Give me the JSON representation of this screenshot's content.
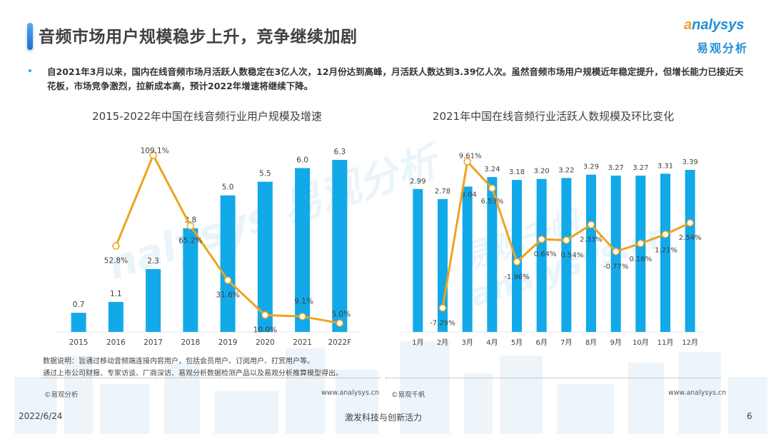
{
  "header": {
    "title": "音频市场用户规模稳步上升，竞争继续加剧",
    "logo_en_first": "a",
    "logo_en_rest": "nalysys",
    "logo_cn": "易观分析"
  },
  "summary": "自2021年3月以来，国内在线音频市场月活跃人数稳定在3亿人次，12月份达到高峰，月活跃人数达到3.39亿人次。虽然音频市场用户规模近年稳定提升，但增长能力已接近天花板，市场竞争激烈，拉新成本高，预计2022年增速将继续下降。",
  "watermarks": {
    "left": "nalysys 易观分析",
    "right": "易观千帆 analysys.cn"
  },
  "chart_data": [
    {
      "type": "bar",
      "title": "2015-2022年中国在线音频行业用户规模及增速",
      "categories": [
        "2015",
        "2016",
        "2017",
        "2018",
        "2019",
        "2020",
        "2021",
        "2022F"
      ],
      "series": [
        {
          "name": "用户规模",
          "kind": "bar",
          "unit": "亿",
          "values": [
            0.7,
            1.1,
            2.3,
            3.8,
            5.0,
            5.5,
            6.0,
            6.3
          ],
          "labels": [
            "0.7",
            "1.1",
            "2.3",
            "3.8",
            "5.0",
            "5.5",
            "6.0",
            "6.3"
          ]
        },
        {
          "name": "增速",
          "kind": "line",
          "unit": "%",
          "values": [
            null,
            52.8,
            109.1,
            65.2,
            31.6,
            10.0,
            9.1,
            5.0
          ],
          "labels": [
            "",
            "52.8%",
            "109.1%",
            "65.2%",
            "31.6%",
            "10.0%",
            "9.1%",
            "5.0%"
          ]
        }
      ],
      "xlabel": "",
      "ylabel": "",
      "ylim_bar": [
        0,
        7
      ],
      "ylim_line": [
        0,
        110
      ],
      "grid": false,
      "legend": "none",
      "colors": {
        "bar": "#12a9e8",
        "line": "#eea320",
        "marker_fill": "#ffffff"
      }
    },
    {
      "type": "bar",
      "title": "2021年中国在线音频行业活跃人数规模及环比变化",
      "categories": [
        "1月",
        "2月",
        "3月",
        "4月",
        "5月",
        "6月",
        "7月",
        "8月",
        "9月",
        "10月",
        "11月",
        "12月"
      ],
      "series": [
        {
          "name": "活跃人数",
          "kind": "bar",
          "unit": "亿",
          "values": [
            2.99,
            2.78,
            3.04,
            3.24,
            3.18,
            3.2,
            3.22,
            3.29,
            3.27,
            3.27,
            3.31,
            3.39
          ],
          "labels": [
            "2.99",
            "2.78",
            "3.04",
            "3.24",
            "3.18",
            "3.20",
            "3.22",
            "3.29",
            "3.27",
            "3.27",
            "3.31",
            "3.39"
          ]
        },
        {
          "name": "环比变化",
          "kind": "line",
          "unit": "%",
          "values": [
            null,
            -7.29,
            9.61,
            6.53,
            -1.96,
            0.64,
            0.54,
            2.33,
            -0.77,
            0.16,
            1.21,
            2.54
          ],
          "labels": [
            "",
            "-7.29%",
            "9.61%",
            "6.53%",
            "-1.96%",
            "0.64%",
            "0.54%",
            "2.33%",
            "-0.77%",
            "0.16%",
            "1.21%",
            "2.54%"
          ]
        }
      ],
      "xlabel": "",
      "ylabel": "",
      "ylim_bar": [
        0,
        3.5
      ],
      "ylim_line": [
        -8,
        10
      ],
      "grid": false,
      "legend": "none",
      "colors": {
        "bar": "#12a9e8",
        "line": "#eea320",
        "marker_fill": "#ffffff"
      }
    }
  ],
  "notes": {
    "line1": "数据说明：旨通过移动音频端连接内容用户，包括会员用户、订阅用户、打赏用户等。",
    "line2": "通过上市公司财报、专家访谈、厂商深访、易观分析数据检测产品以及易观分析推算模型得出。"
  },
  "footer": {
    "left_copyright": "©易观分析",
    "left_url": "www.analysys.cn",
    "right_copyright": "©易观千帆",
    "right_url": "www.analysys.cn",
    "date": "2022/6/24",
    "slogan": "激发科技与创新活力",
    "page": "6"
  }
}
